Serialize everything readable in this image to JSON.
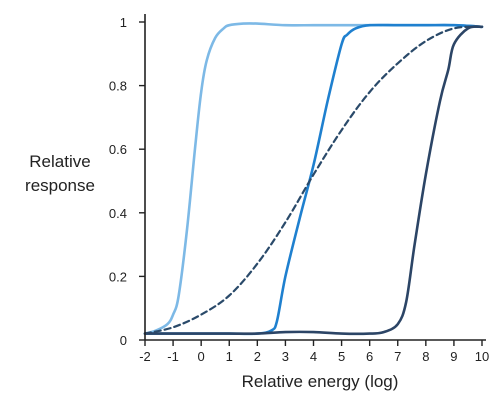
{
  "chart_data": {
    "type": "line",
    "xlabel": "Relative energy (log)",
    "ylabel_lines": [
      "Relative",
      "response"
    ],
    "xlim": [
      -2,
      10
    ],
    "ylim": [
      0,
      1
    ],
    "x_ticks": [
      -2,
      -1,
      0,
      1,
      2,
      3,
      4,
      5,
      6,
      7,
      8,
      9,
      10
    ],
    "y_ticks": [
      0,
      0.2,
      0.4,
      0.6,
      0.8,
      1
    ],
    "grid": false,
    "legend": "none",
    "series": [
      {
        "color": "#7db9e6",
        "dash": "solid",
        "x": [
          -2,
          -1.6,
          -1.2,
          -1,
          -0.8,
          -0.5,
          -0.2,
          0,
          0.2,
          0.5,
          0.8,
          1,
          1.5,
          2,
          3,
          4,
          5,
          6,
          7,
          8,
          9,
          10
        ],
        "y": [
          0.02,
          0.03,
          0.05,
          0.08,
          0.14,
          0.35,
          0.62,
          0.78,
          0.88,
          0.95,
          0.98,
          0.99,
          0.995,
          0.995,
          0.99,
          0.99,
          0.99,
          0.99,
          0.99,
          0.99,
          0.99,
          0.985
        ]
      },
      {
        "color": "#1f80cf",
        "dash": "solid",
        "x": [
          -2,
          -1,
          0,
          1,
          2,
          2.5,
          2.7,
          3,
          3.5,
          4,
          4.5,
          5,
          5.2,
          5.5,
          6,
          7,
          8,
          9,
          10
        ],
        "y": [
          0.02,
          0.02,
          0.02,
          0.02,
          0.02,
          0.03,
          0.06,
          0.2,
          0.38,
          0.55,
          0.75,
          0.93,
          0.96,
          0.98,
          0.99,
          0.99,
          0.99,
          0.99,
          0.985
        ]
      },
      {
        "color": "#2a4a6a",
        "dash": "dashed",
        "x": [
          -2,
          -1,
          0,
          1,
          2,
          3,
          4,
          5,
          6,
          7,
          8,
          9,
          10
        ],
        "y": [
          0.02,
          0.04,
          0.08,
          0.14,
          0.24,
          0.37,
          0.52,
          0.66,
          0.78,
          0.87,
          0.94,
          0.98,
          0.985
        ]
      },
      {
        "color": "#2c4566",
        "dash": "solid",
        "x": [
          -2,
          -1,
          0,
          1,
          2,
          3,
          4,
          5,
          6,
          6.5,
          7,
          7.3,
          7.6,
          8,
          8.5,
          8.8,
          9,
          9.5,
          10
        ],
        "y": [
          0.02,
          0.02,
          0.02,
          0.02,
          0.02,
          0.025,
          0.025,
          0.02,
          0.02,
          0.025,
          0.05,
          0.12,
          0.3,
          0.52,
          0.75,
          0.85,
          0.93,
          0.98,
          0.985
        ]
      }
    ]
  }
}
